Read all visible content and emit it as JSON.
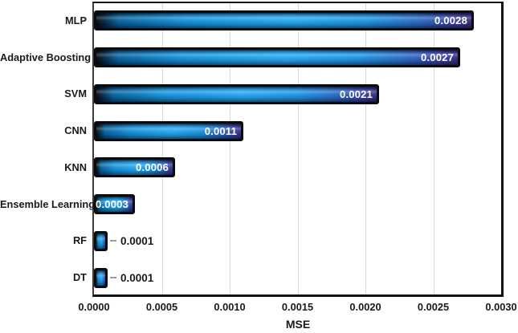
{
  "chart_data": {
    "type": "bar",
    "orientation": "horizontal",
    "title": "",
    "xlabel": "MSE",
    "ylabel": "",
    "xlim": [
      0.0,
      0.003
    ],
    "grid": "vertical-only",
    "legend": "none",
    "categories": [
      "MLP",
      "Adaptive Boosting",
      "SVM",
      "CNN",
      "KNN",
      "Ensemble Learning",
      "RF",
      "DT"
    ],
    "values": [
      0.0028,
      0.0027,
      0.0021,
      0.0011,
      0.0006,
      0.0003,
      0.0001,
      0.0001
    ],
    "value_labels": [
      "0.0028",
      "0.0027",
      "0.0021",
      "0.0011",
      "0.0006",
      "0.0003",
      "0.0001",
      "0.0001"
    ],
    "x_tick_labels": [
      "0.0000",
      "0.0005",
      "0.0010",
      "0.0015",
      "0.0020",
      "0.0025",
      "0.0030"
    ],
    "colors": {
      "bar_bright_blue": "#27aaf0",
      "bar_dark_start": "#020a11",
      "bar_indigo_end": "#3e3c9e",
      "bar_border": "#0b0b0b",
      "gridline": "#d9d9d9",
      "value_label_inside": "#ffffff",
      "value_label_outside": "#1a1a1a",
      "leader_line": "#9b9b9b",
      "axis_text": "#1a1a1a",
      "background": "#ffffff"
    }
  }
}
